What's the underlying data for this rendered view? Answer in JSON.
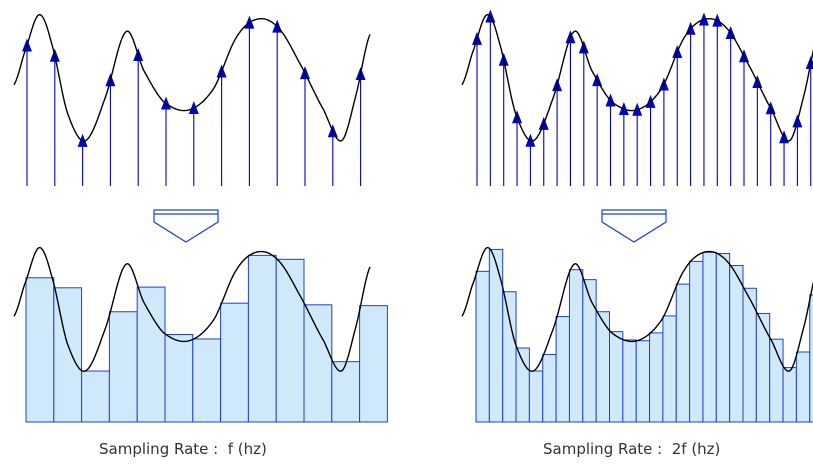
{
  "panels": [
    {
      "id": "left",
      "caption": "Sampling Rate :  f (hz)",
      "samples_per_axis": 13
    },
    {
      "id": "right",
      "caption": "Sampling Rate :  2f (hz)",
      "samples_per_axis": 26
    }
  ],
  "colors": {
    "sample_arrow": "#0000cc",
    "waveform": "#000000",
    "bar_fill": "#cfe9fb",
    "bar_stroke": "#1f3fd6",
    "down_arrow": "#1f3fd6"
  },
  "icons": {
    "transform_arrow": "down-chevron-icon"
  }
}
